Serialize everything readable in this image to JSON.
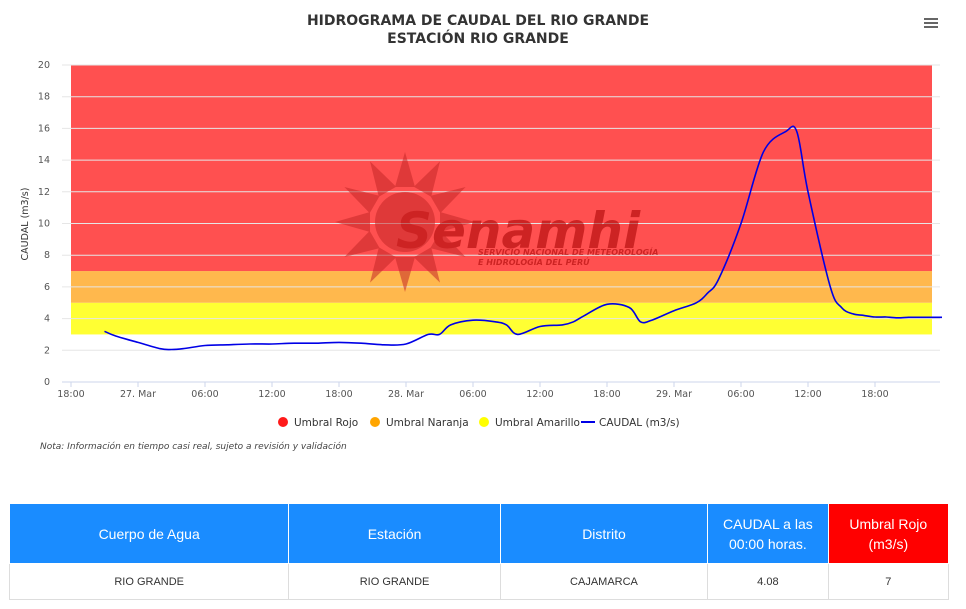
{
  "chart_data": {
    "type": "line",
    "title": "HIDROGRAMA DE CAUDAL DEL RIO GRANDE",
    "subtitle": "ESTACIÓN RIO GRANDE",
    "ylabel": "CAUDAL (m3/s)",
    "ylim": [
      0,
      20
    ],
    "yticks": [
      "0",
      "2",
      "4",
      "6",
      "8",
      "10",
      "12",
      "14",
      "16",
      "18",
      "20"
    ],
    "xticks": [
      "18:00",
      "27. Mar",
      "06:00",
      "12:00",
      "18:00",
      "28. Mar",
      "06:00",
      "12:00",
      "18:00",
      "29. Mar",
      "06:00",
      "12:00",
      "18:00"
    ],
    "grid": "horizontal",
    "legend_position": "bottom",
    "bands": [
      {
        "name": "Umbral Amarillo",
        "from": 3,
        "to": 5,
        "color": "#ffff33"
      },
      {
        "name": "Umbral Naranja",
        "from": 5,
        "to": 7,
        "color": "#ffb84d"
      },
      {
        "name": "Umbral Rojo",
        "from": 7,
        "to": 20,
        "color": "#ff5050"
      }
    ],
    "legend": [
      {
        "name": "Umbral Rojo",
        "color": "#ff1a1a",
        "kind": "dot"
      },
      {
        "name": "Umbral Naranja",
        "color": "#ffa500",
        "kind": "dot"
      },
      {
        "name": "Umbral Amarillo",
        "color": "#ffff00",
        "kind": "dot"
      },
      {
        "name": "CAUDAL (m3/s)",
        "color": "#0000e6",
        "kind": "line"
      }
    ],
    "series": [
      {
        "name": "CAUDAL (m3/s)",
        "color": "#0000e6",
        "x_hours": [
          3,
          4,
          6,
          8,
          9,
          10,
          12,
          14,
          16,
          18,
          20,
          22,
          24,
          26,
          28,
          30,
          32,
          33,
          34,
          36,
          38,
          39,
          40,
          42,
          44,
          45,
          46,
          48,
          50,
          51,
          52,
          54,
          56,
          57,
          58,
          60,
          62,
          64,
          65,
          66,
          68,
          69,
          70,
          71,
          72,
          73,
          74,
          75,
          76,
          78
        ],
        "values": [
          3.2,
          2.9,
          2.5,
          2.1,
          2.05,
          2.1,
          2.3,
          2.35,
          2.4,
          2.4,
          2.45,
          2.45,
          2.5,
          2.45,
          2.35,
          2.4,
          3.0,
          3.0,
          3.6,
          3.9,
          3.8,
          3.6,
          3.0,
          3.5,
          3.6,
          3.8,
          4.2,
          4.9,
          4.7,
          3.8,
          3.9,
          4.5,
          5.0,
          5.6,
          6.5,
          10.0,
          14.5,
          15.8,
          15.8,
          12.0,
          6.0,
          4.7,
          4.3,
          4.2,
          4.1,
          4.1,
          4.05,
          4.08,
          4.08,
          4.08
        ]
      }
    ]
  },
  "logo": {
    "name": "Senamhi",
    "tagline_1": "SERVICIO NACIONAL DE METEOROLOGÍA",
    "tagline_2": "E HIDROLOGÍA DEL PERÚ"
  },
  "note": "Nota: Información en tiempo casi real, sujeto a revisión y validación",
  "table": {
    "headers": [
      "Cuerpo de Agua",
      "Estación",
      "Distrito",
      "CAUDAL a las 00:00 horas.",
      "Umbral Rojo (m3/s)"
    ],
    "row": [
      "RIO GRANDE",
      "RIO GRANDE",
      "CAJAMARCA",
      "4.08",
      "7"
    ]
  },
  "colors": {
    "header_blue": "#1a8cff",
    "header_red": "#ff0000",
    "line": "#0000e6"
  }
}
